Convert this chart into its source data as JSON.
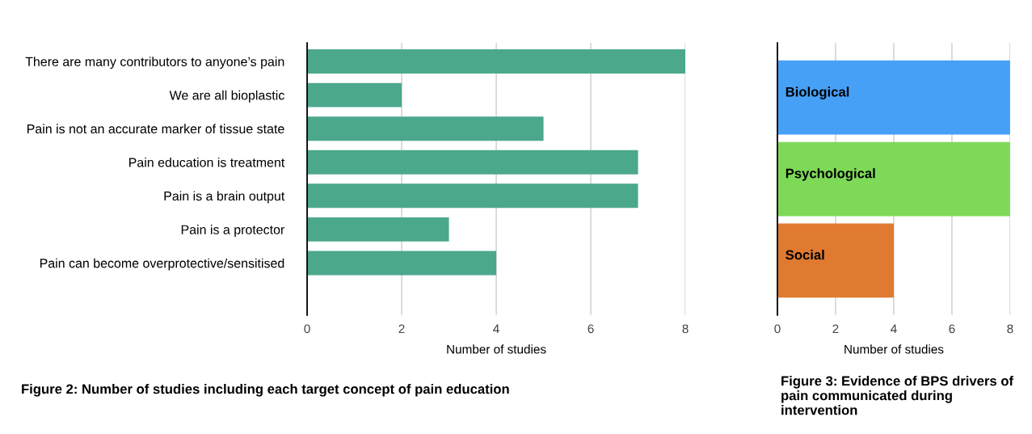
{
  "chart_data": [
    {
      "type": "bar",
      "orientation": "horizontal",
      "categories": [
        "There are many contributors to anyone’s pain",
        "We are all bioplastic",
        "Pain is not an accurate marker of tissue state",
        "Pain education is treatment",
        "Pain is a brain output",
        "Pain is a protector",
        "Pain can become overprotective/sensitised"
      ],
      "values": [
        8,
        2,
        5,
        7,
        7,
        3,
        4
      ],
      "color": "#4ba88d",
      "xlim": [
        0,
        8
      ],
      "xticks": [
        0,
        2,
        4,
        6,
        8
      ],
      "xlabel": "Number of studies",
      "grid": "x",
      "annotations": [
        "Figure 2: Number of studies including each target concept of pain education"
      ]
    },
    {
      "type": "bar",
      "orientation": "horizontal",
      "categories": [
        "Biological",
        "Psychological",
        "Social"
      ],
      "values": [
        8,
        8,
        4
      ],
      "colors": [
        "#46a0f5",
        "#7ed957",
        "#e07a30"
      ],
      "xlim": [
        0,
        8
      ],
      "xticks": [
        0,
        2,
        4,
        6,
        8
      ],
      "xlabel": "Number of studies",
      "grid": "x",
      "annotations": [
        "Figure 3: Evidence of BPS drivers of pain communicated during intervention"
      ]
    }
  ]
}
